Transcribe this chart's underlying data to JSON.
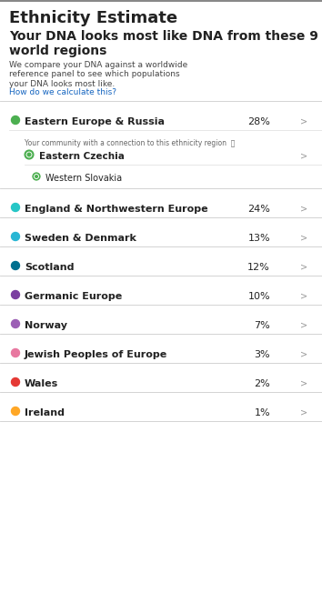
{
  "title": "Ethnicity Estimate",
  "subtitle": "Your DNA looks most like DNA from these 9\nworld regions",
  "description": "We compare your DNA against a worldwide\nreference panel to see which populations\nyour DNA looks most like.",
  "link_text": "How do we calculate this?",
  "community_label": "Your community with a connection to this ethnicity region  ⓘ",
  "sub_regions": [
    {
      "name": "Eastern Czechia",
      "has_arrow": true
    },
    {
      "name": "Western Slovakia",
      "has_arrow": false
    }
  ],
  "regions": [
    {
      "name": "Eastern Europe & Russia",
      "pct": "28%",
      "color": "#4CAF50",
      "expanded": true
    },
    {
      "name": "England & Northwestern Europe",
      "pct": "24%",
      "color": "#26C6C6"
    },
    {
      "name": "Sweden & Denmark",
      "pct": "13%",
      "color": "#29B6D4"
    },
    {
      "name": "Scotland",
      "pct": "12%",
      "color": "#006F8E"
    },
    {
      "name": "Germanic Europe",
      "pct": "10%",
      "color": "#7B3FA0"
    },
    {
      "name": "Norway",
      "pct": "7%",
      "color": "#9C5FB5"
    },
    {
      "name": "Jewish Peoples of Europe",
      "pct": "3%",
      "color": "#E878A0"
    },
    {
      "name": "Wales",
      "pct": "2%",
      "color": "#E53935"
    },
    {
      "name": "Ireland",
      "pct": "1%",
      "color": "#FFA726"
    }
  ],
  "bg_color": "#FFFFFF",
  "text_color": "#222222",
  "subtext_color": "#444444",
  "link_color": "#1565C0",
  "divider_color": "#CCCCCC",
  "arrow_color": "#999999",
  "title_fontsize": 13,
  "subtitle_fontsize": 10,
  "body_fontsize": 6.5,
  "region_fontsize": 8,
  "pct_fontsize": 8,
  "small_fontsize": 5.5
}
